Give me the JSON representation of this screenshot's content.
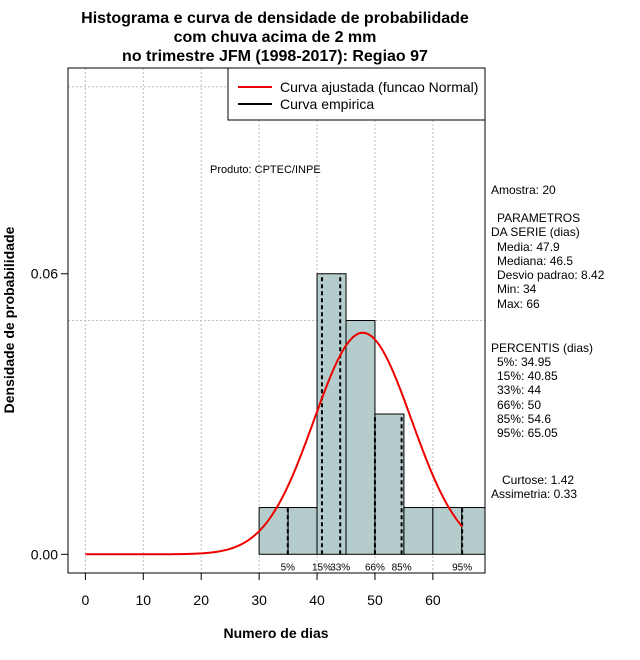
{
  "chart_data": {
    "type": "bar",
    "title": [
      "Histograma e curva de densidade de probabilidade",
      "com chuva acima de 2 mm",
      "no trimestre JFM (1998-2017): Regiao 97"
    ],
    "xlabel": "Numero de dias",
    "ylabel": "Densidade de probabilidade",
    "xlim": [
      -3,
      69
    ],
    "ylim": [
      -0.004,
      0.104
    ],
    "x_ticks": [
      0,
      10,
      20,
      30,
      40,
      50,
      60
    ],
    "y_ticks": [
      0.0,
      0.06
    ],
    "y_tick_labels": [
      "0.00",
      "0.06"
    ],
    "grid": true,
    "grid_x": [
      0,
      10,
      20,
      30,
      40,
      50,
      60
    ],
    "grid_y": [
      0.05,
      0.1
    ],
    "bins": [
      {
        "start": 30,
        "end": 35,
        "density": 0.01
      },
      {
        "start": 35,
        "end": 40,
        "density": 0.01
      },
      {
        "start": 40,
        "end": 45,
        "density": 0.06
      },
      {
        "start": 45,
        "end": 50,
        "density": 0.05
      },
      {
        "start": 50,
        "end": 55,
        "density": 0.03
      },
      {
        "start": 55,
        "end": 60,
        "density": 0.01
      },
      {
        "start": 60,
        "end": 65,
        "density": 0.01
      },
      {
        "start": 65,
        "end": 70,
        "density": 0.01
      }
    ],
    "bar_color": "#b5cccc",
    "normal_curve": {
      "mean": 47.9,
      "sd": 8.42,
      "x_range": [
        0,
        65.05
      ],
      "color": "#ee0000"
    },
    "percentile_lines": [
      {
        "label": "5%",
        "x": 34.95
      },
      {
        "label": "15%",
        "x": 40.85
      },
      {
        "label": "33%",
        "x": 44
      },
      {
        "label": "66%",
        "x": 50
      },
      {
        "label": "85%",
        "x": 54.6
      },
      {
        "label": "95%",
        "x": 65.05
      }
    ],
    "legend": {
      "position": "top-right",
      "entries": [
        {
          "label": "Curva ajustada (funcao Normal)",
          "color": "#ee0000"
        },
        {
          "label": "Curva empirica",
          "color": "#000000"
        }
      ]
    },
    "annotation": "Produto: CPTEC/INPE"
  },
  "side_panel": {
    "amostra": "Amostra: 20",
    "param_title_1": "PARAMETROS",
    "param_title_2": "DA SERIE (dias)",
    "media": "Media: 47.9",
    "mediana": "Mediana: 46.5",
    "desvio": "Desvio padrao: 8.42",
    "min": "Min: 34",
    "max": "Max: 66",
    "perc_title": "PERCENTIS (dias)",
    "p5": "5%: 34.95",
    "p15": "15%: 40.85",
    "p33": "33%: 44",
    "p66": "66%: 50",
    "p85": "85%: 54.6",
    "p95": "95%: 65.05",
    "curtose": "Curtose: 1.42",
    "assimetria": "Assimetria: 0.33"
  }
}
